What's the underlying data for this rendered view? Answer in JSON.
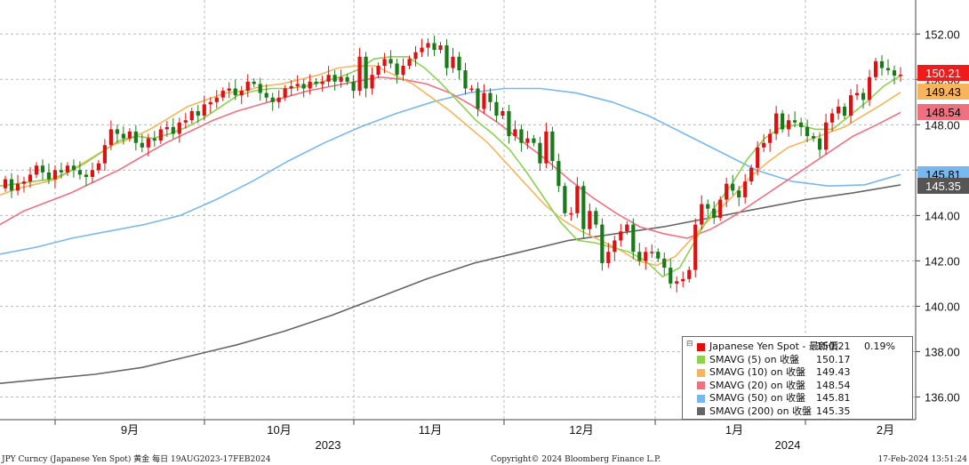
{
  "chart_data": {
    "type": "candlestick",
    "title": "",
    "ylim": [
      135,
      153.5
    ],
    "y_ticks": [
      "136.00",
      "138.00",
      "140.00",
      "142.00",
      "144.00",
      "146.00",
      "148.00",
      "150.00",
      "152.00"
    ],
    "months": [
      "9月",
      "10月",
      "11月",
      "12月",
      "1月",
      "2月"
    ],
    "years": [
      "2023",
      "2024"
    ],
    "last_labels": [
      {
        "text": "150.21",
        "value": 150.21,
        "bg": "#ef1c1c",
        "color": "#ffffff"
      },
      {
        "text": "149.43",
        "value": 149.43,
        "bg": "#f6b55c",
        "color": "#000000"
      },
      {
        "text": "148.54",
        "value": 148.54,
        "bg": "#f07080",
        "color": "#000000"
      },
      {
        "text": "145.81",
        "value": 145.81,
        "bg": "#78b8ef",
        "color": "#000000"
      },
      {
        "text": "145.35",
        "value": 145.35,
        "bg": "#555555",
        "color": "#ffffff"
      }
    ],
    "footer": {
      "left": "JPY Curncy (Japanese Yen Spot) 黄金  每日 19AUG2023-17FEB2024",
      "center": "Copyright© 2024 Bloomberg Finance L.P.",
      "right": "17-Feb-2024 13:51:24"
    },
    "legend": {
      "icon": "⊟",
      "items": [
        {
          "name": "Japanese Yen Spot - 最新價",
          "value": "150.21",
          "pct": "0.19%",
          "color": "#e01010"
        },
        {
          "name": "SMAVG (5)  on 收盤",
          "value": "150.17",
          "pct": "",
          "color": "#8cd24e"
        },
        {
          "name": "SMAVG (10)  on 收盤",
          "value": "149.43",
          "pct": "",
          "color": "#f6b55c"
        },
        {
          "name": "SMAVG (20)  on 收盤",
          "value": "148.54",
          "pct": "",
          "color": "#f07080"
        },
        {
          "name": "SMAVG (50)  on 收盤",
          "value": "145.81",
          "pct": "",
          "color": "#78b8ef"
        },
        {
          "name": "SMAVG (200)  on 收盤",
          "value": "145.35",
          "pct": "",
          "color": "#666666"
        }
      ]
    },
    "colors": {
      "up": "#e01010",
      "down": "#1a7a1a",
      "sma5": "#8cd24e",
      "sma10": "#f6b55c",
      "sma20": "#f07080",
      "sma50": "#78b8ef",
      "sma200": "#666666"
    },
    "closes": [
      145.6,
      145.1,
      145.4,
      145.5,
      145.8,
      146.2,
      145.9,
      145.6,
      146.0,
      145.9,
      146.2,
      146.0,
      145.8,
      145.7,
      146.0,
      146.3,
      147.1,
      147.8,
      147.6,
      147.4,
      147.7,
      147.2,
      147.0,
      147.4,
      147.3,
      147.8,
      147.9,
      147.6,
      148.1,
      148.2,
      148.6,
      148.4,
      148.9,
      149.0,
      149.2,
      149.5,
      149.6,
      149.3,
      149.5,
      149.9,
      149.8,
      149.4,
      149.2,
      149.0,
      149.2,
      149.6,
      149.7,
      149.8,
      149.6,
      149.9,
      149.8,
      149.9,
      150.2,
      149.9,
      150.1,
      149.9,
      149.5,
      151.0,
      149.6,
      150.2,
      150.6,
      150.9,
      150.7,
      150.2,
      150.6,
      150.9,
      151.2,
      151.4,
      151.6,
      151.3,
      151.5,
      150.5,
      151.0,
      150.4,
      149.6,
      149.6,
      148.7,
      149.4,
      149.0,
      148.4,
      148.6,
      147.5,
      147.8,
      147.2,
      147.4,
      147.2,
      146.3,
      147.7,
      146.4,
      145.3,
      144.1,
      144.1,
      145.3,
      143.4,
      144.2,
      143.6,
      141.9,
      142.4,
      142.9,
      143.3,
      143.6,
      142.4,
      142.0,
      142.4,
      142.4,
      142.1,
      141.7,
      141.0,
      141.1,
      141.2,
      141.6,
      143.6,
      144.5,
      144.3,
      143.9,
      144.7,
      145.4,
      145.1,
      144.8,
      145.5,
      146.1,
      147.0,
      147.2,
      147.6,
      148.5,
      147.8,
      148.2,
      148.1,
      147.9,
      147.5,
      147.4,
      146.9,
      148.1,
      148.5,
      148.8,
      148.4,
      149.3,
      149.4,
      149.1,
      150.1,
      150.8,
      150.5,
      150.4,
      150.17,
      150.21
    ],
    "opens_hint": "open = previous close",
    "sma5": [
      145.3,
      145.4,
      145.5,
      145.6,
      145.9,
      146.3,
      146.8,
      147.3,
      147.5,
      147.4,
      147.6,
      147.9,
      148.3,
      148.8,
      149.3,
      149.5,
      149.6,
      149.6,
      149.7,
      149.9,
      150.1,
      150.4,
      150.9,
      151.0,
      151.0,
      150.5,
      149.8,
      149.0,
      148.2,
      147.6,
      146.9,
      145.9,
      144.8,
      143.7,
      142.9,
      142.8,
      142.6,
      142.4,
      142.0,
      141.3,
      141.7,
      143.0,
      144.3,
      145.3,
      146.5,
      147.4,
      147.9,
      148.0,
      147.8,
      147.8,
      148.4,
      149.0,
      149.7,
      150.17
    ],
    "sma10": [
      144.9,
      145.2,
      145.4,
      145.6,
      146.1,
      146.6,
      147.1,
      147.4,
      147.8,
      148.3,
      148.8,
      149.1,
      149.4,
      149.5,
      149.7,
      149.8,
      150.0,
      150.2,
      150.5,
      150.6,
      150.6,
      150.2,
      149.8,
      149.2,
      148.6,
      147.9,
      147.2,
      146.3,
      145.4,
      144.5,
      143.8,
      143.3,
      142.9,
      142.5,
      142.0,
      141.8,
      142.2,
      143.1,
      144.0,
      144.8,
      145.7,
      146.4,
      147.0,
      147.3,
      147.6,
      147.9,
      148.4,
      148.9,
      149.43
    ],
    "sma20": [
      143.6,
      144.2,
      144.6,
      145.0,
      145.5,
      146.0,
      146.6,
      147.2,
      147.7,
      148.2,
      148.6,
      148.9,
      149.2,
      149.5,
      149.7,
      149.9,
      150.1,
      150.0,
      149.8,
      149.4,
      148.8,
      148.1,
      147.3,
      146.5,
      145.6,
      144.8,
      144.1,
      143.5,
      143.2,
      143.0,
      143.4,
      144.0,
      144.7,
      145.4,
      146.1,
      146.8,
      147.5,
      148.0,
      148.54
    ],
    "sma50": [
      142.3,
      142.6,
      143.0,
      143.3,
      143.6,
      144.0,
      144.7,
      145.5,
      146.4,
      147.2,
      147.9,
      148.5,
      149.0,
      149.4,
      149.6,
      149.6,
      149.4,
      149.0,
      148.4,
      147.6,
      146.8,
      146.0,
      145.5,
      145.3,
      145.35,
      145.81
    ],
    "sma200": [
      136.6,
      136.8,
      137.0,
      137.3,
      137.8,
      138.3,
      138.9,
      139.6,
      140.4,
      141.2,
      141.9,
      142.4,
      142.9,
      143.2,
      143.5,
      143.9,
      144.3,
      144.7,
      145.0,
      145.35
    ]
  }
}
